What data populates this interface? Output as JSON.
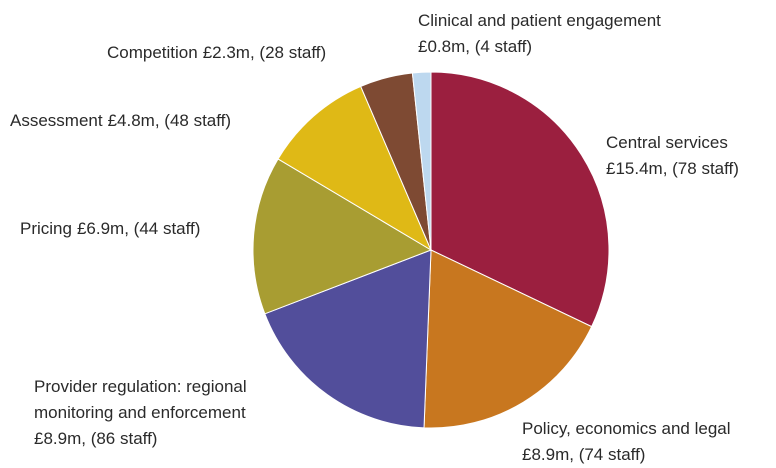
{
  "chart_data": {
    "type": "pie",
    "categories": [
      "Central services",
      "Policy, economics and legal",
      "Provider regulation: regional monitoring and enforcement",
      "Pricing",
      "Assessment",
      "Competition",
      "Clinical and patient engagement"
    ],
    "values": [
      15.4,
      8.9,
      8.9,
      6.9,
      4.8,
      2.3,
      0.8
    ],
    "value_labels": [
      "£15.4m, (78 staff)",
      "£8.9m, (74 staff)",
      "£8.9m, (86 staff)",
      "£6.9m, (44 staff)",
      "£4.8m, (48 staff)",
      "£2.3m, (28 staff)",
      "£0.8m, (4 staff)"
    ],
    "colors": [
      "#9b1f3f",
      "#c8771f",
      "#524e9b",
      "#a89d32",
      "#dfb916",
      "#7e4a33",
      "#bdd8ef"
    ]
  }
}
